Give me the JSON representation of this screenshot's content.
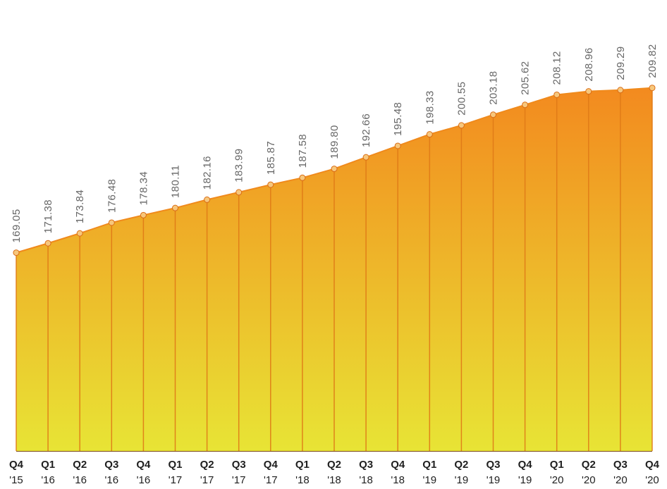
{
  "chart_data": {
    "type": "area",
    "title": "",
    "xlabel": "",
    "ylabel": "",
    "categories": [
      [
        "Q4",
        "'15"
      ],
      [
        "Q1",
        "'16"
      ],
      [
        "Q2",
        "'16"
      ],
      [
        "Q3",
        "'16"
      ],
      [
        "Q4",
        "'16"
      ],
      [
        "Q1",
        "'17"
      ],
      [
        "Q2",
        "'17"
      ],
      [
        "Q3",
        "'17"
      ],
      [
        "Q4",
        "'17"
      ],
      [
        "Q1",
        "'18"
      ],
      [
        "Q2",
        "'18"
      ],
      [
        "Q3",
        "'18"
      ],
      [
        "Q4",
        "'18"
      ],
      [
        "Q1",
        "'19"
      ],
      [
        "Q2",
        "'19"
      ],
      [
        "Q3",
        "'19"
      ],
      [
        "Q4",
        "'19"
      ],
      [
        "Q1",
        "'20"
      ],
      [
        "Q2",
        "'20"
      ],
      [
        "Q3",
        "'20"
      ],
      [
        "Q4",
        "'20"
      ]
    ],
    "values": [
      169.05,
      171.38,
      173.84,
      176.48,
      178.34,
      180.11,
      182.16,
      183.99,
      185.87,
      187.58,
      189.8,
      192.66,
      195.48,
      198.33,
      200.55,
      203.18,
      205.62,
      208.12,
      208.96,
      209.29,
      209.82
    ],
    "value_labels": [
      "169.05",
      "171.38",
      "173.84",
      "176.48",
      "178.34",
      "180.11",
      "182.16",
      "183.99",
      "185.87",
      "187.58",
      "189.80",
      "192.66",
      "195.48",
      "198.33",
      "200.55",
      "203.18",
      "205.62",
      "208.12",
      "208.96",
      "209.29",
      "209.82"
    ],
    "ylim": [
      120,
      215
    ],
    "grid": false,
    "legend": "none",
    "colors": {
      "fill_top": "#f38a1f",
      "fill_bottom": "#e8e435",
      "line": "#f08a1c",
      "dropline": "#e07a17",
      "point_fill": "#f7c77c",
      "point_stroke": "#d96d16",
      "baseline": "#7a4b1a"
    }
  }
}
